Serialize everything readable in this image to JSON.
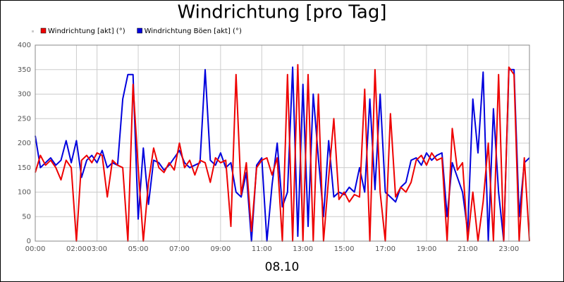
{
  "chart_data": {
    "type": "line",
    "title": "Windrichtung [pro Tag]",
    "x_label": "08.10",
    "x": [
      0,
      0.25,
      0.5,
      0.75,
      1,
      1.25,
      1.5,
      1.75,
      2,
      2.25,
      2.5,
      2.75,
      3,
      3.25,
      3.5,
      3.75,
      4,
      4.25,
      4.5,
      4.75,
      5,
      5.25,
      5.5,
      5.75,
      6,
      6.25,
      6.5,
      6.75,
      7,
      7.25,
      7.5,
      7.75,
      8,
      8.25,
      8.5,
      8.75,
      9,
      9.25,
      9.5,
      9.75,
      10,
      10.25,
      10.5,
      10.75,
      11,
      11.25,
      11.5,
      11.75,
      12,
      12.25,
      12.5,
      12.75,
      13,
      13.25,
      13.5,
      13.75,
      14,
      14.25,
      14.5,
      14.75,
      15,
      15.25,
      15.5,
      15.75,
      16,
      16.25,
      16.5,
      16.75,
      17,
      17.25,
      17.5,
      17.75,
      18,
      18.25,
      18.5,
      18.75,
      19,
      19.25,
      19.5,
      19.75,
      20,
      20.25,
      20.5,
      20.75,
      21,
      21.25,
      21.5,
      21.75,
      22,
      22.25,
      22.5,
      22.75,
      23,
      23.25,
      23.5,
      23.75,
      24
    ],
    "series": [
      {
        "name": "Windrichtung Böen [akt] (°)",
        "color": "#0000dd",
        "values": [
          215,
          150,
          160,
          170,
          155,
          165,
          205,
          160,
          205,
          130,
          165,
          175,
          160,
          185,
          150,
          160,
          155,
          290,
          340,
          340,
          45,
          190,
          75,
          165,
          160,
          145,
          155,
          170,
          185,
          160,
          150,
          155,
          160,
          350,
          165,
          155,
          180,
          150,
          160,
          100,
          90,
          140,
          0,
          155,
          170,
          0,
          115,
          200,
          70,
          100,
          355,
          10,
          320,
          30,
          300,
          170,
          50,
          205,
          90,
          100,
          95,
          110,
          100,
          150,
          100,
          290,
          105,
          300,
          100,
          90,
          80,
          110,
          120,
          165,
          170,
          155,
          180,
          165,
          175,
          180,
          50,
          160,
          130,
          100,
          20,
          290,
          180,
          345,
          0,
          270,
          100,
          0,
          350,
          350,
          50,
          160,
          170
        ]
      },
      {
        "name": "Windrichtung [akt] (°)",
        "color": "#ee0000",
        "values": [
          140,
          175,
          155,
          165,
          150,
          125,
          165,
          150,
          0,
          165,
          175,
          160,
          180,
          175,
          90,
          165,
          155,
          150,
          0,
          320,
          150,
          0,
          120,
          190,
          150,
          140,
          160,
          145,
          200,
          150,
          165,
          135,
          165,
          160,
          120,
          170,
          160,
          165,
          30,
          340,
          95,
          160,
          20,
          150,
          165,
          170,
          135,
          170,
          0,
          340,
          0,
          360,
          0,
          340,
          0,
          300,
          0,
          130,
          250,
          85,
          100,
          80,
          95,
          90,
          310,
          0,
          350,
          100,
          0,
          260,
          90,
          110,
          100,
          120,
          165,
          175,
          155,
          180,
          165,
          170,
          0,
          230,
          145,
          160,
          0,
          100,
          0,
          80,
          200,
          0,
          340,
          0,
          355,
          340,
          0,
          170,
          0
        ]
      }
    ],
    "legend_order": [
      1,
      0
    ],
    "xlim": [
      0,
      24
    ],
    "xticks": [
      {
        "value": 0,
        "label": "00:00"
      },
      {
        "value": 2,
        "label": "02:00"
      },
      {
        "value": 3,
        "label": "03:00"
      },
      {
        "value": 5,
        "label": "05:00"
      },
      {
        "value": 7,
        "label": "07:00"
      },
      {
        "value": 9,
        "label": "09:00"
      },
      {
        "value": 11,
        "label": "11:00"
      },
      {
        "value": 13,
        "label": "13:00"
      },
      {
        "value": 15,
        "label": "15:00"
      },
      {
        "value": 17,
        "label": "17:00"
      },
      {
        "value": 19,
        "label": "19:00"
      },
      {
        "value": 21,
        "label": "21:00"
      },
      {
        "value": 23,
        "label": "23:00"
      }
    ],
    "ylim": [
      0,
      400
    ],
    "yticks": [
      0,
      50,
      100,
      150,
      200,
      250,
      300,
      350,
      400
    ],
    "grid": true
  }
}
